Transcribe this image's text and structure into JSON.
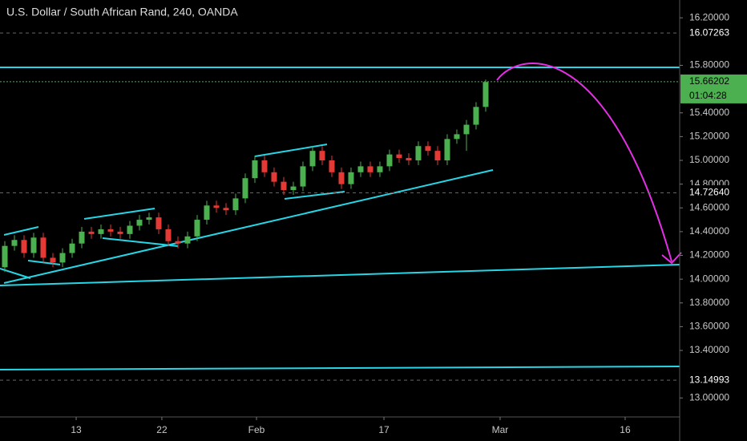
{
  "chart_data": {
    "type": "candlestick",
    "title": "U.S. Dollar / South African Rand, 240, OANDA",
    "x": [
      0,
      1,
      2,
      3,
      4,
      5,
      6,
      7,
      8,
      9,
      10,
      11,
      12,
      13,
      14,
      15,
      16,
      17,
      18,
      19,
      20,
      21,
      22,
      23,
      24,
      25,
      26,
      27,
      28,
      29,
      30,
      31,
      32,
      33,
      34,
      35,
      36,
      37,
      38,
      39,
      40,
      41,
      42,
      43,
      44,
      45,
      46,
      47,
      48,
      49,
      50
    ],
    "open": [
      14.1,
      14.28,
      14.33,
      14.22,
      14.35,
      14.18,
      14.14,
      14.22,
      14.3,
      14.4,
      14.38,
      14.42,
      14.4,
      14.38,
      14.45,
      14.5,
      14.52,
      14.42,
      14.32,
      14.3,
      14.36,
      14.5,
      14.62,
      14.6,
      14.58,
      14.68,
      14.85,
      15.0,
      14.9,
      14.82,
      14.75,
      14.78,
      14.95,
      15.08,
      15.0,
      14.9,
      14.8,
      14.9,
      14.95,
      14.9,
      14.95,
      15.05,
      15.02,
      15.0,
      15.12,
      15.08,
      15.0,
      15.18,
      15.22,
      15.3,
      15.45
    ],
    "high": [
      14.32,
      14.37,
      14.37,
      14.39,
      14.39,
      14.22,
      14.26,
      14.34,
      14.44,
      14.44,
      14.46,
      14.46,
      14.44,
      14.49,
      14.54,
      14.56,
      14.56,
      14.46,
      14.36,
      14.4,
      14.54,
      14.66,
      14.66,
      14.64,
      14.72,
      14.89,
      15.04,
      15.04,
      14.94,
      14.86,
      14.82,
      14.99,
      15.12,
      15.12,
      15.04,
      14.94,
      14.94,
      14.99,
      14.99,
      14.99,
      15.09,
      15.09,
      15.06,
      15.16,
      15.16,
      15.12,
      15.22,
      15.26,
      15.34,
      15.49,
      15.68
    ],
    "low": [
      14.06,
      14.24,
      14.18,
      14.18,
      14.14,
      14.1,
      14.1,
      14.18,
      14.26,
      14.34,
      14.34,
      14.36,
      14.34,
      14.34,
      14.41,
      14.46,
      14.38,
      14.28,
      14.26,
      14.26,
      14.32,
      14.46,
      14.56,
      14.54,
      14.54,
      14.64,
      14.81,
      14.86,
      14.78,
      14.71,
      14.71,
      14.74,
      14.91,
      14.96,
      14.86,
      14.76,
      14.76,
      14.86,
      14.86,
      14.86,
      14.91,
      14.98,
      14.96,
      14.96,
      15.04,
      14.96,
      14.96,
      15.14,
      15.08,
      15.26,
      15.41
    ],
    "close": [
      14.28,
      14.33,
      14.22,
      14.35,
      14.18,
      14.14,
      14.22,
      14.3,
      14.4,
      14.38,
      14.42,
      14.4,
      14.38,
      14.45,
      14.5,
      14.52,
      14.42,
      14.32,
      14.3,
      14.36,
      14.5,
      14.62,
      14.6,
      14.58,
      14.68,
      14.85,
      15.0,
      14.9,
      14.82,
      14.75,
      14.78,
      14.95,
      15.08,
      15.0,
      14.9,
      14.8,
      14.9,
      14.95,
      14.9,
      14.95,
      15.05,
      15.02,
      15.0,
      15.12,
      15.08,
      15.0,
      15.18,
      15.22,
      15.3,
      15.45,
      15.66
    ],
    "up_color": "#4caf50",
    "down_color": "#e53935",
    "xlim": [
      -0.5,
      70.17
    ],
    "xticks": [
      {
        "value": 7.42,
        "label": "13"
      },
      {
        "value": 16.33,
        "label": "22"
      },
      {
        "value": 26.17,
        "label": "Feb"
      },
      {
        "value": 39.42,
        "label": "17"
      },
      {
        "value": 51.5,
        "label": "Mar"
      },
      {
        "value": 64.5,
        "label": "16"
      }
    ],
    "ylim": [
      12.84,
      16.35
    ],
    "yticks": [
      {
        "value": 16.2,
        "label": "16.20000"
      },
      {
        "value": 15.8,
        "label": "15.80000"
      },
      {
        "value": 15.4,
        "label": "15.40000"
      },
      {
        "value": 15.2,
        "label": "15.20000"
      },
      {
        "value": 15.0,
        "label": "15.00000"
      },
      {
        "value": 14.8,
        "label": "14.80000"
      },
      {
        "value": 14.6,
        "label": "14.60000"
      },
      {
        "value": 14.4,
        "label": "14.40000"
      },
      {
        "value": 14.2,
        "label": "14.20000"
      },
      {
        "value": 14.0,
        "label": "14.00000"
      },
      {
        "value": 13.8,
        "label": "13.80000"
      },
      {
        "value": 13.6,
        "label": "13.60000"
      },
      {
        "value": 13.4,
        "label": "13.40000"
      },
      {
        "value": 13.0,
        "label": "13.00000"
      }
    ],
    "price_markers": [
      {
        "value": 16.07263,
        "label": "16.07263"
      },
      {
        "value": 14.7264,
        "label": "14.72640"
      },
      {
        "value": 13.14993,
        "label": "13.14993"
      }
    ],
    "last_price": {
      "value": 15.66202,
      "label": "15.66202"
    },
    "countdown": "01:04:28",
    "grid": false
  }
}
